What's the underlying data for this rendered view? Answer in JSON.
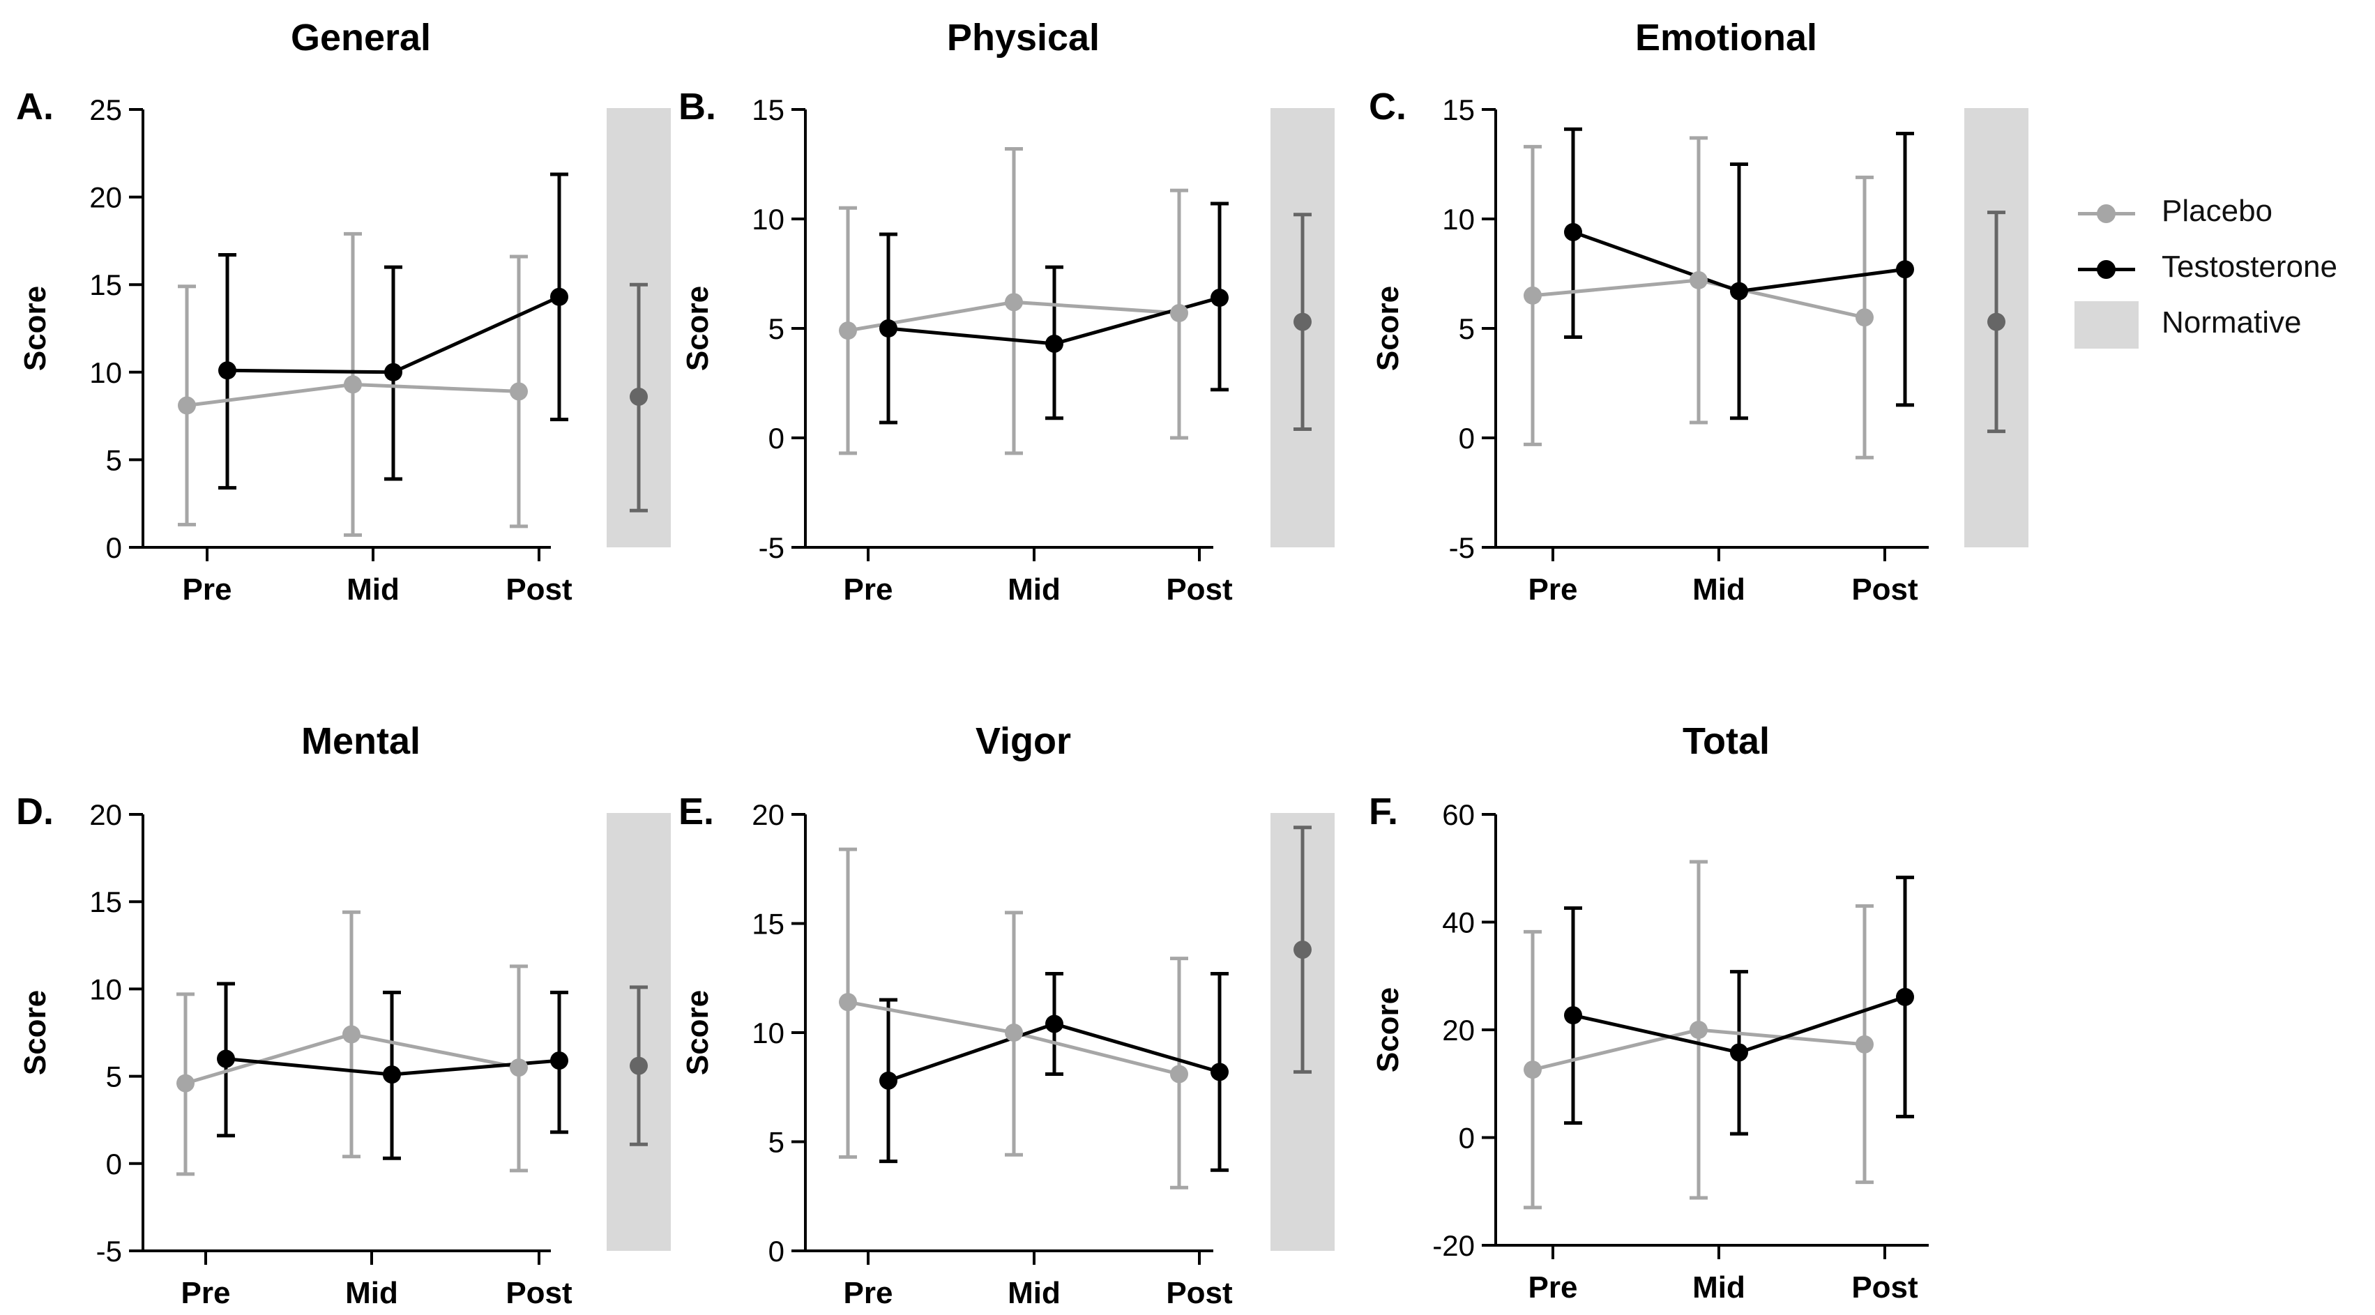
{
  "legend": {
    "placebo": "Placebo",
    "testosterone": "Testosterone",
    "normative": "Normative"
  },
  "colors": {
    "placebo": "#a6a6a6",
    "testosterone": "#000000",
    "normative_marker": "#666666",
    "normative_band": "#d9d9d9",
    "axis": "#000000"
  },
  "chart_data": [
    {
      "type": "line",
      "letter": "A.",
      "title": "General",
      "ylabel": "Score",
      "categories": [
        "Pre",
        "Mid",
        "Post"
      ],
      "ylim": [
        0,
        25
      ],
      "yticks": [
        0,
        5,
        10,
        15,
        20,
        25
      ],
      "series": [
        {
          "name": "Placebo",
          "values": [
            8.1,
            9.3,
            8.9
          ],
          "lower": [
            1.3,
            0.7,
            1.2
          ],
          "upper": [
            14.9,
            17.9,
            16.6
          ]
        },
        {
          "name": "Testosterone",
          "values": [
            10.1,
            10.0,
            14.3
          ],
          "lower": [
            3.4,
            3.9,
            7.3
          ],
          "upper": [
            16.7,
            16.0,
            21.3
          ]
        }
      ],
      "normative": {
        "value": 8.6,
        "lower": 2.1,
        "upper": 15.0
      }
    },
    {
      "type": "line",
      "letter": "B.",
      "title": "Physical",
      "ylabel": "Score",
      "categories": [
        "Pre",
        "Mid",
        "Post"
      ],
      "ylim": [
        -5,
        15
      ],
      "yticks": [
        -5,
        0,
        5,
        10,
        15
      ],
      "series": [
        {
          "name": "Placebo",
          "values": [
            4.9,
            6.2,
            5.7
          ],
          "lower": [
            -0.7,
            -0.7,
            0.0
          ],
          "upper": [
            10.5,
            13.2,
            11.3
          ]
        },
        {
          "name": "Testosterone",
          "values": [
            5.0,
            4.3,
            6.4
          ],
          "lower": [
            0.7,
            0.9,
            2.2
          ],
          "upper": [
            9.3,
            7.8,
            10.7
          ]
        }
      ],
      "normative": {
        "value": 5.3,
        "lower": 0.4,
        "upper": 10.2
      }
    },
    {
      "type": "line",
      "letter": "C.",
      "title": "Emotional",
      "ylabel": "Score",
      "categories": [
        "Pre",
        "Mid",
        "Post"
      ],
      "ylim": [
        -5,
        15
      ],
      "yticks": [
        -5,
        0,
        5,
        10,
        15
      ],
      "series": [
        {
          "name": "Placebo",
          "values": [
            6.5,
            7.2,
            5.5
          ],
          "lower": [
            -0.3,
            0.7,
            -0.9
          ],
          "upper": [
            13.3,
            13.7,
            11.9
          ]
        },
        {
          "name": "Testosterone",
          "values": [
            9.4,
            6.7,
            7.7
          ],
          "lower": [
            4.6,
            0.9,
            1.5
          ],
          "upper": [
            14.1,
            12.5,
            13.9
          ]
        }
      ],
      "normative": {
        "value": 5.3,
        "lower": 0.3,
        "upper": 10.3
      }
    },
    {
      "type": "line",
      "letter": "D.",
      "title": "Mental",
      "ylabel": "Score",
      "categories": [
        "Pre",
        "Mid",
        "Post"
      ],
      "ylim": [
        -5,
        20
      ],
      "yticks": [
        -5,
        0,
        5,
        10,
        15,
        20
      ],
      "series": [
        {
          "name": "Placebo",
          "values": [
            4.6,
            7.4,
            5.5
          ],
          "lower": [
            -0.6,
            0.4,
            -0.4
          ],
          "upper": [
            9.7,
            14.4,
            11.3
          ]
        },
        {
          "name": "Testosterone",
          "values": [
            6.0,
            5.1,
            5.9
          ],
          "lower": [
            1.6,
            0.3,
            1.8
          ],
          "upper": [
            10.3,
            9.8,
            9.8
          ]
        }
      ],
      "normative": {
        "value": 5.6,
        "lower": 1.1,
        "upper": 10.1
      }
    },
    {
      "type": "line",
      "letter": "E.",
      "title": "Vigor",
      "ylabel": "Score",
      "categories": [
        "Pre",
        "Mid",
        "Post"
      ],
      "ylim": [
        0,
        20
      ],
      "yticks": [
        0,
        5,
        10,
        15,
        20
      ],
      "series": [
        {
          "name": "Placebo",
          "values": [
            11.4,
            10.0,
            8.1
          ],
          "lower": [
            4.3,
            4.4,
            2.9
          ],
          "upper": [
            18.4,
            15.5,
            13.4
          ]
        },
        {
          "name": "Testosterone",
          "values": [
            7.8,
            10.4,
            8.2
          ],
          "lower": [
            4.1,
            8.1,
            3.7
          ],
          "upper": [
            11.5,
            12.7,
            12.7
          ]
        }
      ],
      "normative": {
        "value": 13.8,
        "lower": 8.2,
        "upper": 19.4
      }
    },
    {
      "type": "line",
      "letter": "F.",
      "title": "Total",
      "ylabel": "Score",
      "categories": [
        "Pre",
        "Mid",
        "Post"
      ],
      "ylim": [
        -20,
        60
      ],
      "yticks": [
        -20,
        0,
        20,
        40,
        60
      ],
      "series": [
        {
          "name": "Placebo",
          "values": [
            12.6,
            20.0,
            17.3
          ],
          "lower": [
            -13.0,
            -11.2,
            -8.3
          ],
          "upper": [
            38.2,
            51.2,
            43.0
          ]
        },
        {
          "name": "Testosterone",
          "values": [
            22.7,
            15.8,
            26.1
          ],
          "lower": [
            2.7,
            0.7,
            3.9
          ],
          "upper": [
            42.6,
            30.8,
            48.3
          ]
        }
      ],
      "normative": null
    }
  ]
}
